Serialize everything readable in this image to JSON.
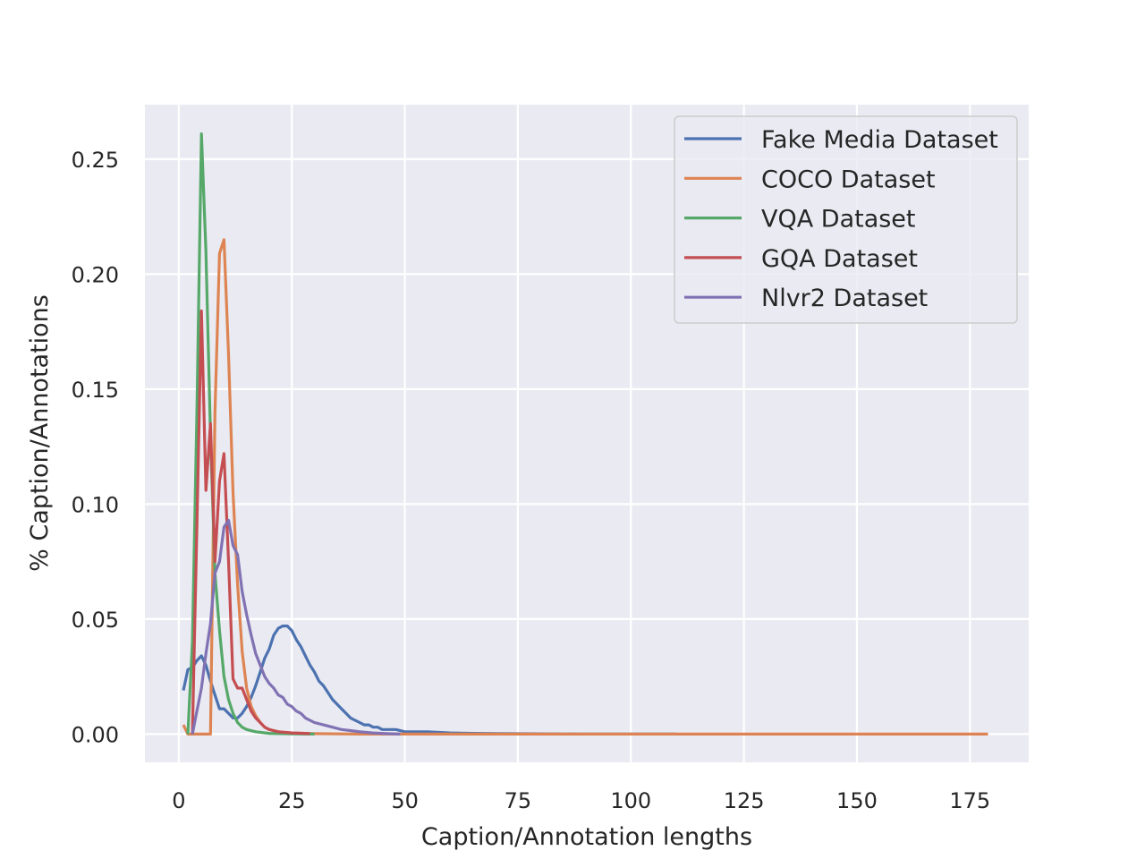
{
  "chart_data": {
    "type": "line",
    "title": "",
    "xlabel": "Caption/Annotation lengths",
    "ylabel": "% Caption/Annotations",
    "xlim": [
      -7.5,
      188
    ],
    "ylim": [
      -0.0123,
      0.2737
    ],
    "x_ticks": [
      0,
      25,
      50,
      75,
      100,
      125,
      150,
      175
    ],
    "x_tick_labels": [
      "0",
      "25",
      "50",
      "75",
      "100",
      "125",
      "150",
      "175"
    ],
    "y_ticks": [
      0.0,
      0.05,
      0.1,
      0.15,
      0.2,
      0.25
    ],
    "y_tick_labels": [
      "0.00",
      "0.05",
      "0.10",
      "0.15",
      "0.20",
      "0.25"
    ],
    "grid": true,
    "background": "#eaeaf2",
    "legend_position": "upper right",
    "series": [
      {
        "name": "Fake Media Dataset",
        "color": "#4c72b0",
        "points": [
          [
            1,
            0.019
          ],
          [
            2,
            0.028
          ],
          [
            3,
            0.029
          ],
          [
            4,
            0.032
          ],
          [
            5,
            0.034
          ],
          [
            6,
            0.03
          ],
          [
            7,
            0.023
          ],
          [
            8,
            0.017
          ],
          [
            9,
            0.011
          ],
          [
            10,
            0.011
          ],
          [
            11,
            0.009
          ],
          [
            12,
            0.007
          ],
          [
            13,
            0.007
          ],
          [
            14,
            0.009
          ],
          [
            15,
            0.012
          ],
          [
            16,
            0.016
          ],
          [
            17,
            0.021
          ],
          [
            18,
            0.027
          ],
          [
            19,
            0.033
          ],
          [
            20,
            0.037
          ],
          [
            21,
            0.043
          ],
          [
            22,
            0.046
          ],
          [
            23,
            0.047
          ],
          [
            24,
            0.047
          ],
          [
            25,
            0.045
          ],
          [
            26,
            0.041
          ],
          [
            27,
            0.038
          ],
          [
            28,
            0.034
          ],
          [
            29,
            0.03
          ],
          [
            30,
            0.027
          ],
          [
            31,
            0.023
          ],
          [
            32,
            0.021
          ],
          [
            33,
            0.018
          ],
          [
            34,
            0.015
          ],
          [
            35,
            0.013
          ],
          [
            36,
            0.011
          ],
          [
            37,
            0.009
          ],
          [
            38,
            0.007
          ],
          [
            39,
            0.006
          ],
          [
            40,
            0.005
          ],
          [
            41,
            0.004
          ],
          [
            42,
            0.004
          ],
          [
            43,
            0.003
          ],
          [
            44,
            0.003
          ],
          [
            45,
            0.002
          ],
          [
            46,
            0.002
          ],
          [
            48,
            0.002
          ],
          [
            50,
            0.001
          ],
          [
            55,
            0.001
          ],
          [
            60,
            0.0005
          ],
          [
            65,
            0.0003
          ],
          [
            70,
            0.0002
          ],
          [
            80,
            0.0001
          ],
          [
            90,
            0.0
          ],
          [
            100,
            0.0
          ],
          [
            110,
            0.0
          ]
        ]
      },
      {
        "name": "COCO Dataset",
        "color": "#dd8452",
        "points": [
          [
            1,
            0.004
          ],
          [
            2,
            0.0
          ],
          [
            3,
            0.0
          ],
          [
            4,
            0.0
          ],
          [
            5,
            0.0
          ],
          [
            6,
            0.0
          ],
          [
            7,
            0.0
          ],
          [
            8,
            0.14
          ],
          [
            9,
            0.209
          ],
          [
            10,
            0.215
          ],
          [
            11,
            0.165
          ],
          [
            12,
            0.105
          ],
          [
            13,
            0.065
          ],
          [
            14,
            0.036
          ],
          [
            15,
            0.02
          ],
          [
            16,
            0.012
          ],
          [
            17,
            0.008
          ],
          [
            18,
            0.005
          ],
          [
            19,
            0.003
          ],
          [
            20,
            0.002
          ],
          [
            22,
            0.001
          ],
          [
            25,
            0.0005
          ],
          [
            30,
            0.0002
          ],
          [
            40,
            0.0
          ],
          [
            60,
            0.0
          ],
          [
            100,
            0.0
          ],
          [
            140,
            0.0
          ],
          [
            179,
            0.0
          ]
        ]
      },
      {
        "name": "VQA Dataset",
        "color": "#55a868",
        "points": [
          [
            2,
            0.0
          ],
          [
            3,
            0.04
          ],
          [
            4,
            0.14
          ],
          [
            5,
            0.261
          ],
          [
            6,
            0.21
          ],
          [
            7,
            0.13
          ],
          [
            8,
            0.07
          ],
          [
            9,
            0.045
          ],
          [
            10,
            0.025
          ],
          [
            11,
            0.015
          ],
          [
            12,
            0.009
          ],
          [
            13,
            0.005
          ],
          [
            14,
            0.003
          ],
          [
            15,
            0.002
          ],
          [
            17,
            0.001
          ],
          [
            20,
            0.0003
          ],
          [
            25,
            0.0001
          ],
          [
            30,
            0.0
          ]
        ]
      },
      {
        "name": "GQA Dataset",
        "color": "#c44e52",
        "points": [
          [
            3,
            0.0
          ],
          [
            4,
            0.09
          ],
          [
            5,
            0.184
          ],
          [
            6,
            0.106
          ],
          [
            7,
            0.135
          ],
          [
            8,
            0.075
          ],
          [
            9,
            0.11
          ],
          [
            10,
            0.122
          ],
          [
            11,
            0.075
          ],
          [
            12,
            0.024
          ],
          [
            13,
            0.02
          ],
          [
            14,
            0.02
          ],
          [
            15,
            0.015
          ],
          [
            16,
            0.01
          ],
          [
            17,
            0.007
          ],
          [
            18,
            0.005
          ],
          [
            19,
            0.003
          ],
          [
            20,
            0.002
          ],
          [
            22,
            0.001
          ],
          [
            25,
            0.0005
          ],
          [
            29,
            0.0002
          ]
        ]
      },
      {
        "name": "Nlvr2 Dataset",
        "color": "#8172b3",
        "points": [
          [
            3,
            0.0
          ],
          [
            4,
            0.01
          ],
          [
            5,
            0.02
          ],
          [
            6,
            0.035
          ],
          [
            7,
            0.048
          ],
          [
            8,
            0.07
          ],
          [
            9,
            0.075
          ],
          [
            10,
            0.09
          ],
          [
            11,
            0.093
          ],
          [
            12,
            0.082
          ],
          [
            13,
            0.078
          ],
          [
            14,
            0.062
          ],
          [
            15,
            0.052
          ],
          [
            16,
            0.043
          ],
          [
            17,
            0.035
          ],
          [
            18,
            0.03
          ],
          [
            19,
            0.025
          ],
          [
            20,
            0.022
          ],
          [
            21,
            0.02
          ],
          [
            22,
            0.017
          ],
          [
            23,
            0.016
          ],
          [
            24,
            0.013
          ],
          [
            25,
            0.012
          ],
          [
            26,
            0.01
          ],
          [
            27,
            0.009
          ],
          [
            28,
            0.007
          ],
          [
            29,
            0.006
          ],
          [
            30,
            0.005
          ],
          [
            32,
            0.004
          ],
          [
            34,
            0.003
          ],
          [
            36,
            0.002
          ],
          [
            38,
            0.0015
          ],
          [
            40,
            0.001
          ],
          [
            43,
            0.0005
          ],
          [
            46,
            0.0002
          ],
          [
            49,
            0.0
          ]
        ]
      }
    ]
  }
}
